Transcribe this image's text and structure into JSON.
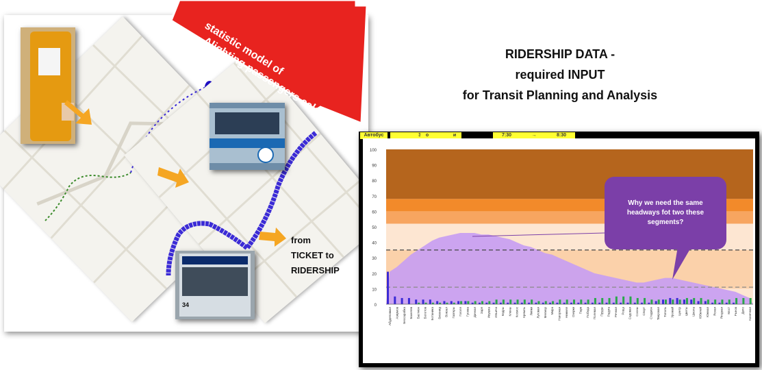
{
  "banner": {
    "text": "statistic model of Alighting passengers calculation"
  },
  "title": {
    "line1": "RIDERSHIP DATA -",
    "line2": "required INPUT",
    "line3": "for Transit Planning and Analysis"
  },
  "from_text": {
    "line1": "from",
    "line2": "TICKET to",
    "line3": "RIDERSHIP"
  },
  "bus_sign": "34",
  "chart_header": {
    "route_label": "Автобус",
    "route": "34",
    "a": "о",
    "b": "и",
    "from": "7:30",
    "arrow": "→",
    "to": "8:30"
  },
  "callout": {
    "text": "Why we need the same headways  fot two these segments?"
  },
  "colors": {
    "banner_red": "#e8231f",
    "callout_purple": "#7b3fa8",
    "area_lilac": "#c89ef2",
    "band_dark": "#b5651d",
    "band_orange": "#f28a2a",
    "band_light": "#f7a560",
    "band_peach": "#fbd1aa",
    "band_cream": "#fde6d2",
    "bar_blue": "#3b2bd6",
    "bar_green": "#2aa84a",
    "highlight_yellow": "#ffff33"
  },
  "chart_data": {
    "type": "area",
    "y_ticks": [
      "100",
      "90",
      "80",
      "70",
      "60",
      "50",
      "40",
      "30",
      "20",
      "10",
      "0"
    ],
    "ylim": [
      0,
      100
    ],
    "bands": [
      {
        "from": 0,
        "to": 10,
        "color": "#fde6d2"
      },
      {
        "from": 10,
        "to": 35,
        "color": "#fbd1aa"
      },
      {
        "from": 35,
        "to": 52,
        "color": "#fde6d2"
      },
      {
        "from": 52,
        "to": 60,
        "color": "#f7a560"
      },
      {
        "from": 60,
        "to": 68,
        "color": "#f28a2a"
      },
      {
        "from": 68,
        "to": 100,
        "color": "#b5651d"
      }
    ],
    "dashed_lines": [
      35,
      11
    ],
    "load": [
      21,
      24,
      28,
      32,
      35,
      38,
      41,
      43,
      44,
      45,
      46,
      46,
      46,
      45,
      45,
      44,
      43,
      42,
      40,
      38,
      37,
      35,
      33,
      32,
      30,
      28,
      26,
      24,
      22,
      20,
      19,
      18,
      17,
      16,
      15,
      14,
      14,
      15,
      16,
      17,
      17,
      16,
      15,
      14,
      13,
      12,
      11,
      10,
      9,
      8,
      6,
      4
    ],
    "boardings": [
      21,
      5,
      4,
      4,
      3,
      3,
      3,
      2,
      2,
      2,
      2,
      2,
      1,
      1,
      1,
      1,
      1,
      1,
      1,
      1,
      1,
      1,
      1,
      1,
      1,
      1,
      1,
      1,
      1,
      1,
      1,
      1,
      1,
      1,
      1,
      1,
      1,
      1,
      2,
      3,
      4,
      4,
      3,
      3,
      2,
      2,
      1,
      1,
      1,
      1,
      0,
      0
    ],
    "alightings": [
      0,
      0,
      0,
      0,
      1,
      1,
      1,
      1,
      1,
      1,
      2,
      2,
      2,
      2,
      2,
      3,
      3,
      3,
      3,
      3,
      3,
      2,
      2,
      2,
      3,
      3,
      3,
      3,
      3,
      4,
      4,
      4,
      5,
      5,
      5,
      4,
      4,
      3,
      3,
      3,
      3,
      3,
      4,
      4,
      4,
      3,
      3,
      3,
      3,
      4,
      4,
      4
    ],
    "stops": [
      "Aбудеповкая",
      "Аэкумов",
      "Бессарабка",
      "Бахелев",
      "Бастион",
      "Болотов",
      "Ботаника",
      "Бизонид",
      "Вокзал",
      "Газгеры",
      "Гоголя",
      "Гусева",
      "Дачная",
      "Заря",
      "Ивушка",
      "Ильича",
      "Кедры",
      "Клены",
      "Космос",
      "Кремль",
      "Липки",
      "Луговая",
      "Мелиор",
      "Мира",
      "Нагорная",
      "Нижняя",
      "Озерки",
      "Парк",
      "Победа",
      "Полевая",
      "Пруды",
      "Радуга",
      "Речная",
      "Роща",
      "Садовая",
      "Сосны",
      "Спорт",
      "Стадион",
      "Тверская",
      "Тополь",
      "Урожай",
      "Центр",
      "Цветы",
      "Школа",
      "Юбилей",
      "Южная",
      "Ясная",
      "Ягодная",
      "Мост",
      "Рынок",
      "Депо",
      "Конечная"
    ]
  }
}
